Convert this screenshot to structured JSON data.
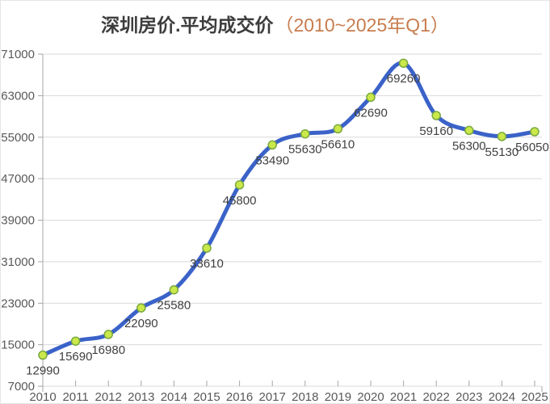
{
  "header": {
    "title_main": "深圳房价.平均成交价",
    "title_accent": "（2010~2025年Q1）"
  },
  "chart_data": {
    "type": "line",
    "title": "深圳房价.平均成交价（2010~2025年Q1）",
    "series_name": "平均成交价",
    "categories": [
      "2010",
      "2011",
      "2012",
      "2013",
      "2014",
      "2015",
      "2016",
      "2017",
      "2018",
      "2019",
      "2020",
      "2021",
      "2022",
      "2023",
      "2024",
      "2025"
    ],
    "values": [
      12990,
      15690,
      16980,
      22090,
      25580,
      33610,
      45800,
      53490,
      55630,
      56610,
      62690,
      69260,
      59160,
      56300,
      55130,
      56050
    ],
    "point_labels": [
      "12990",
      "15690",
      "16980",
      "22090",
      "25580",
      "33610",
      "45800",
      "53490",
      "55630",
      "56610",
      "62690",
      "69260",
      "59160",
      "56300",
      "55130",
      "56050"
    ],
    "yticks": [
      71000,
      63000,
      55000,
      47000,
      39000,
      31000,
      23000,
      15000,
      7000
    ],
    "ylim": [
      7000,
      71000
    ],
    "xlabel": "",
    "ylabel": "",
    "grid": "horizontal",
    "legend": "none",
    "smooth": true,
    "show_point_labels": true,
    "colors": {
      "line": "#3a62c8",
      "marker_fill": "#cbe84b",
      "marker_stroke": "#79a93d",
      "grid": "#d9d9d9",
      "axis": "#a6a6a6",
      "point_label": "#3f3f3f",
      "tick_label": "#595959",
      "title": "#3d3d3d",
      "title_accent": "#c87c4e"
    }
  }
}
